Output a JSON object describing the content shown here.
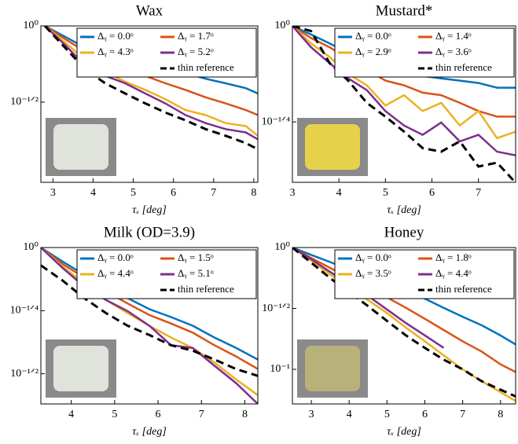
{
  "chart_data": [
    {
      "type": "line",
      "title": "Wax",
      "x_label": "τₓ [deg]",
      "log_y": true,
      "x": [
        2.8,
        3.3,
        3.8,
        4.3,
        4.8,
        5.3,
        5.8,
        6.3,
        6.8,
        7.3,
        7.8,
        8.1
      ],
      "xlim": [
        2.7,
        8.1
      ],
      "xticks": [
        3,
        4,
        5,
        6,
        7,
        8
      ],
      "ylim": [
        0.094,
        1
      ],
      "yticks": [
        {
          "value": 1,
          "label": "10⁰"
        },
        {
          "value": 0.316,
          "label": "10⁻¹ᐟ²"
        }
      ],
      "series": [
        {
          "name": "Δᵧ = 0.0ᵒ",
          "color": "#0072bd",
          "values": [
            1,
            0.85,
            0.72,
            0.66,
            0.6,
            0.56,
            0.52,
            0.49,
            0.45,
            0.42,
            0.39,
            0.36
          ]
        },
        {
          "name": "Δᵧ = 1.7ᵒ",
          "color": "#d95319",
          "values": [
            1,
            0.82,
            0.68,
            0.6,
            0.53,
            0.47,
            0.42,
            0.38,
            0.34,
            0.31,
            0.28,
            0.26
          ]
        },
        {
          "name": "Δᵧ = 4.3ᵒ",
          "color": "#edb120",
          "values": [
            1,
            0.78,
            0.6,
            0.5,
            0.43,
            0.38,
            0.33,
            0.28,
            0.26,
            0.23,
            0.22,
            0.19
          ]
        },
        {
          "name": "Δᵧ = 5.2ᵒ",
          "color": "#7e2f8e",
          "values": [
            1,
            0.75,
            0.55,
            0.47,
            0.42,
            0.36,
            0.31,
            0.26,
            0.23,
            0.21,
            0.2,
            0.18
          ]
        },
        {
          "name": "thin reference",
          "color": "#000000",
          "dashed": true,
          "values": [
            1,
            0.72,
            0.52,
            0.42,
            0.36,
            0.31,
            0.27,
            0.24,
            0.21,
            0.19,
            0.17,
            0.155
          ]
        }
      ]
    },
    {
      "type": "line",
      "title": "Mustard*",
      "x_label": "τₓ [deg]",
      "log_y": true,
      "x": [
        3.0,
        3.4,
        3.8,
        4.2,
        4.6,
        5.0,
        5.4,
        5.8,
        6.2,
        6.6,
        7.0,
        7.4,
        7.8
      ],
      "xlim": [
        3,
        7.8
      ],
      "xticks": [
        3,
        4,
        5,
        6,
        7
      ],
      "ylim": [
        0.391,
        1
      ],
      "yticks": [
        {
          "value": 1,
          "label": "10⁰"
        },
        {
          "value": 0.562,
          "label": "10⁻¹ᐟ⁴"
        }
      ],
      "series": [
        {
          "name": "Δᵧ = 0.0ᵒ",
          "color": "#0072bd",
          "values": [
            1,
            0.95,
            0.9,
            0.85,
            0.82,
            0.78,
            0.76,
            0.74,
            0.73,
            0.72,
            0.71,
            0.69,
            0.69
          ]
        },
        {
          "name": "Δᵧ = 1.4ᵒ",
          "color": "#d95319",
          "values": [
            1,
            0.93,
            0.88,
            0.82,
            0.77,
            0.72,
            0.7,
            0.67,
            0.66,
            0.63,
            0.6,
            0.58,
            0.58
          ]
        },
        {
          "name": "Δᵧ = 2.9ᵒ",
          "color": "#edb120",
          "values": [
            1,
            0.9,
            0.83,
            0.75,
            0.7,
            0.62,
            0.66,
            0.6,
            0.63,
            0.55,
            0.6,
            0.51,
            0.53
          ]
        },
        {
          "name": "Δᵧ = 3.6ᵒ",
          "color": "#7e2f8e",
          "values": [
            1,
            0.88,
            0.8,
            0.73,
            0.68,
            0.6,
            0.55,
            0.52,
            0.56,
            0.5,
            0.52,
            0.47,
            0.46
          ]
        },
        {
          "name": "thin reference",
          "color": "#000000",
          "dashed": true,
          "values": [
            1,
            0.97,
            0.8,
            0.72,
            0.63,
            0.58,
            0.53,
            0.48,
            0.47,
            0.5,
            0.43,
            0.44,
            0.39
          ]
        }
      ]
    },
    {
      "type": "line",
      "title": "Milk (OD=3.9)",
      "x_label": "τₓ [deg]",
      "log_y": true,
      "x": [
        3.3,
        3.8,
        4.3,
        4.8,
        5.3,
        5.8,
        6.3,
        6.8,
        7.3,
        7.8,
        8.3
      ],
      "xlim": [
        3.3,
        8.3
      ],
      "xticks": [
        4,
        5,
        6,
        7,
        8
      ],
      "ylim": [
        0.24,
        1
      ],
      "yticks": [
        {
          "value": 1,
          "label": "10⁰"
        },
        {
          "value": 0.562,
          "label": "10⁻¹ᐟ⁴"
        },
        {
          "value": 0.316,
          "label": "10⁻¹ᐟ²"
        }
      ],
      "series": [
        {
          "name": "Δᵧ = 0.0ᵒ",
          "color": "#0072bd",
          "values": [
            1,
            0.88,
            0.78,
            0.7,
            0.63,
            0.57,
            0.53,
            0.49,
            0.44,
            0.4,
            0.36
          ]
        },
        {
          "name": "Δᵧ = 1.5ᵒ",
          "color": "#d95319",
          "values": [
            1,
            0.86,
            0.76,
            0.67,
            0.6,
            0.54,
            0.5,
            0.46,
            0.41,
            0.37,
            0.33
          ]
        },
        {
          "name": "Δᵧ = 4.4ᵒ",
          "color": "#edb120",
          "values": [
            1,
            0.84,
            0.72,
            0.62,
            0.55,
            0.49,
            0.44,
            0.4,
            0.35,
            0.3,
            0.26
          ]
        },
        {
          "name": "Δᵧ = 5.1ᵒ",
          "color": "#7e2f8e",
          "values": [
            1,
            0.83,
            0.7,
            0.62,
            0.56,
            0.49,
            0.41,
            0.4,
            0.34,
            0.29,
            0.24
          ]
        },
        {
          "name": "thin reference",
          "color": "#000000",
          "dashed": true,
          "values": [
            0.85,
            0.74,
            0.63,
            0.55,
            0.49,
            0.45,
            0.41,
            0.39,
            0.36,
            0.33,
            0.31
          ]
        }
      ]
    },
    {
      "type": "line",
      "title": "Honey",
      "x_label": "τₓ [deg]",
      "log_y": true,
      "x": [
        2.5,
        3.0,
        3.5,
        4.0,
        4.5,
        5.0,
        5.5,
        6.0,
        6.5,
        7.0,
        7.5,
        8.0,
        8.4
      ],
      "xlim": [
        2.5,
        8.4
      ],
      "xticks": [
        3,
        4,
        5,
        6,
        7,
        8
      ],
      "ylim": [
        0.052,
        1
      ],
      "yticks": [
        {
          "value": 1,
          "label": "10⁰"
        },
        {
          "value": 0.316,
          "label": "10⁻¹ᐟ²"
        },
        {
          "value": 0.1,
          "label": "10⁻¹"
        }
      ],
      "series": [
        {
          "name": "Δᵧ = 0.0ᵒ",
          "color": "#0072bd",
          "values": [
            1,
            0.87,
            0.76,
            0.66,
            0.58,
            0.5,
            0.44,
            0.38,
            0.32,
            0.27,
            0.23,
            0.19,
            0.16
          ]
        },
        {
          "name": "Δᵧ = 1.8ᵒ",
          "color": "#d95319",
          "values": [
            1,
            0.82,
            0.68,
            0.56,
            0.47,
            0.39,
            0.32,
            0.26,
            0.21,
            0.17,
            0.14,
            0.11,
            0.095
          ]
        },
        {
          "name": "Δᵧ = 3.5ᵒ",
          "color": "#edb120",
          "values": [
            1,
            0.78,
            0.6,
            0.47,
            0.37,
            0.29,
            0.22,
            0.17,
            0.13,
            0.1,
            0.08,
            0.065,
            0.055
          ]
        },
        {
          "name": "Δᵧ = 4.4ᵒ",
          "color": "#7e2f8e",
          "values": [
            1,
            0.8,
            0.63,
            0.5,
            0.4,
            0.31,
            0.24,
            0.19,
            0.15,
            null,
            null,
            null,
            null
          ]
        },
        {
          "name": "thin reference",
          "color": "#000000",
          "dashed": true,
          "values": [
            1,
            0.75,
            0.56,
            0.43,
            0.33,
            0.25,
            0.19,
            0.15,
            0.12,
            0.1,
            0.08,
            0.068,
            0.06
          ]
        }
      ]
    }
  ]
}
